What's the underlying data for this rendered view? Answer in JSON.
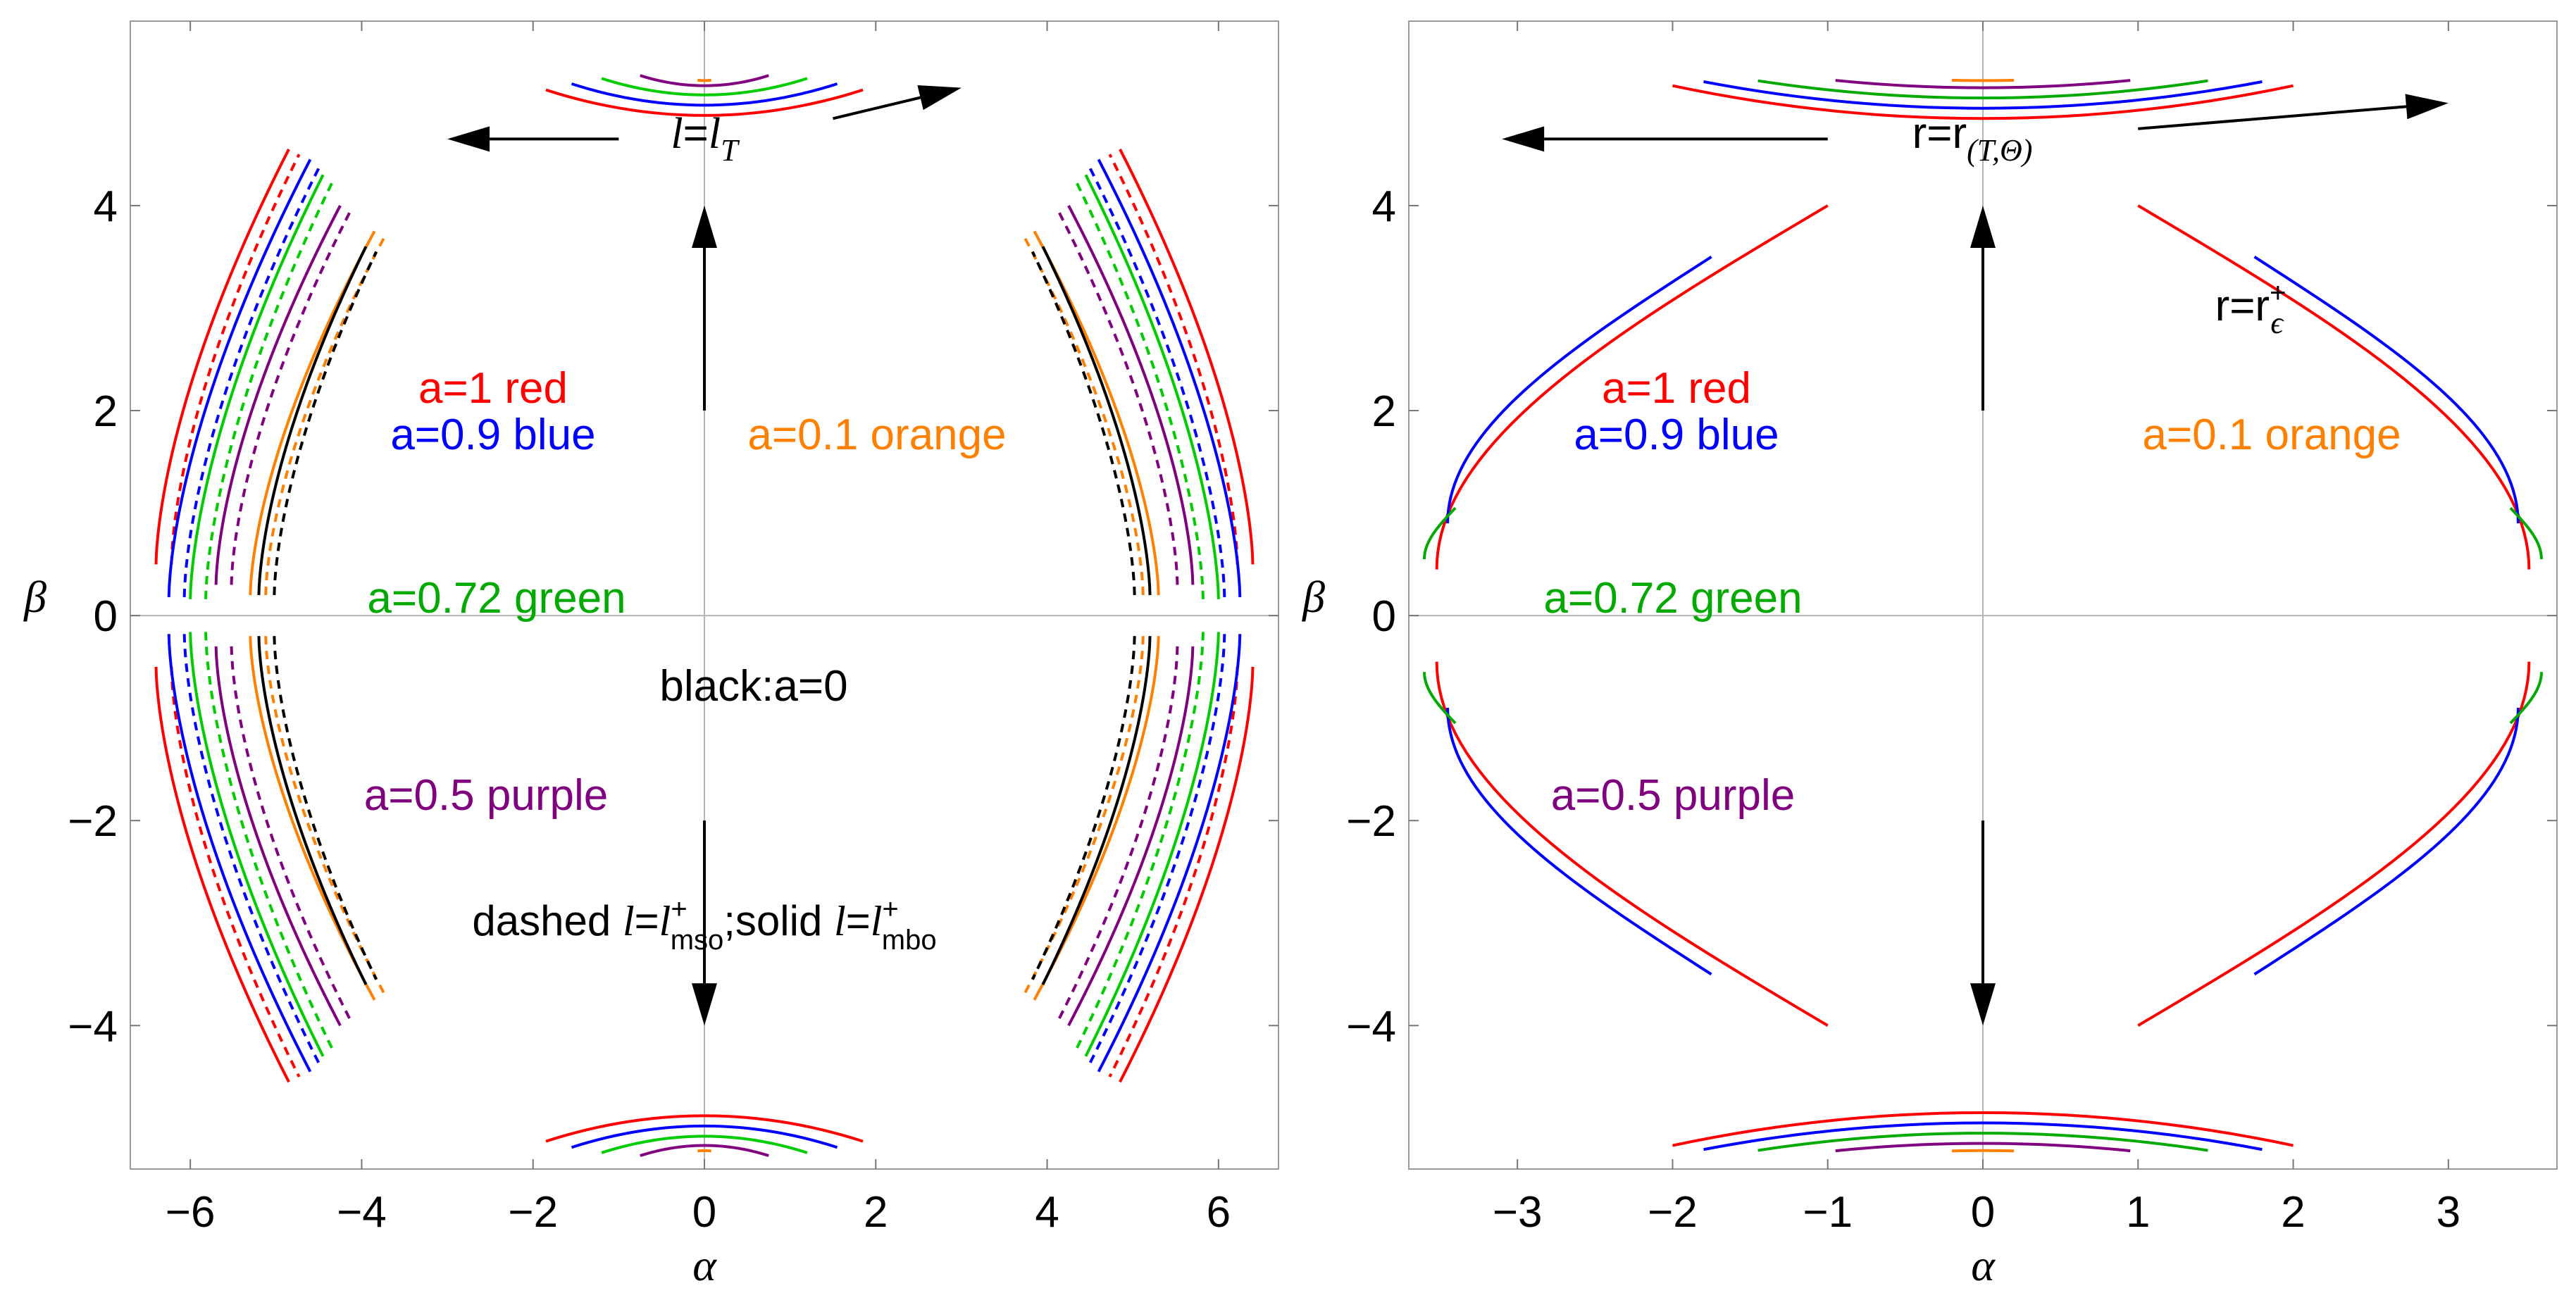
{
  "chart_data": [
    {
      "type": "line",
      "xlabel": "α",
      "ylabel": "β",
      "xlim": [
        -6.7,
        6.7
      ],
      "ylim": [
        -5.4,
        5.8
      ],
      "xticks": [
        -6,
        -4,
        -2,
        0,
        2,
        4,
        6
      ],
      "xtick_labels": [
        "−6",
        "−4",
        "−2",
        "0",
        "2",
        "4",
        "6"
      ],
      "yticks": [
        -4,
        -2,
        0,
        2,
        4
      ],
      "ytick_labels": [
        "−4",
        "−2",
        "0",
        "2",
        "4"
      ],
      "grid": false,
      "labels": [
        {
          "key": "a1",
          "text": "a=1 red",
          "color": "#ff0000"
        },
        {
          "key": "a09",
          "text": "a=0.9 blue",
          "color": "#0000ff"
        },
        {
          "key": "a01",
          "text": "a=0.1 orange",
          "color": "#ff8000"
        },
        {
          "key": "a072",
          "text": "a=0.72 green",
          "color": "#00aa00"
        },
        {
          "key": "a0",
          "text": "black:a=0",
          "color": "#000000"
        },
        {
          "key": "a05",
          "text": "a=0.5 purple",
          "color": "#800080"
        }
      ],
      "bottom_note": {
        "prefix": "dashed ",
        "l": "l",
        "eq1": "=",
        "l_sub1": "mso",
        "sep": ";solid ",
        "eq2": "=",
        "l_sub2": "mbo",
        "sup": "+"
      },
      "top_note": {
        "l": "l",
        "eq": "=",
        "sub": "T"
      },
      "series": [
        {
          "color": "#ff0000",
          "style": "solid",
          "outer_x": 6.4,
          "inner_x": 4.85,
          "beta_max": 4.55,
          "beta_min": 0.5,
          "top_beta": 4.88,
          "top_half": 1.85
        },
        {
          "color": "#0000ff",
          "style": "solid",
          "outer_x": 6.25,
          "inner_x": 4.6,
          "beta_max": 4.45,
          "beta_min": 0.18,
          "top_beta": 4.98,
          "top_half": 1.55
        },
        {
          "color": "#00cc00",
          "style": "solid",
          "outer_x": 6.0,
          "inner_x": 4.45,
          "beta_max": 4.3,
          "beta_min": 0.16,
          "top_beta": 5.08,
          "top_half": 1.2
        },
        {
          "color": "#800080",
          "style": "solid",
          "outer_x": 5.7,
          "inner_x": 4.25,
          "beta_max": 4.0,
          "beta_min": 0.3,
          "top_beta": 5.17,
          "top_half": 0.75
        },
        {
          "color": "#ff8000",
          "style": "solid",
          "outer_x": 5.3,
          "inner_x": 3.85,
          "beta_max": 3.75,
          "beta_min": 0.2,
          "top_beta": 5.22,
          "top_half": 0.08
        },
        {
          "color": "#000000",
          "style": "solid",
          "outer_x": 5.2,
          "inner_x": 3.95,
          "beta_max": 3.6,
          "beta_min": 0.2,
          "top_beta": null,
          "top_half": 0
        }
      ]
    },
    {
      "type": "line",
      "xlabel": "α",
      "ylabel": "β",
      "xlim": [
        -3.7,
        3.7
      ],
      "ylim": [
        -5.4,
        5.8
      ],
      "xticks": [
        -3,
        -2,
        -1,
        0,
        1,
        2,
        3
      ],
      "xtick_labels": [
        "−3",
        "−2",
        "−1",
        "0",
        "1",
        "2",
        "3"
      ],
      "yticks": [
        -4,
        -2,
        0,
        2,
        4
      ],
      "ytick_labels": [
        "−4",
        "−2",
        "0",
        "2",
        "4"
      ],
      "grid": false,
      "labels": [
        {
          "key": "a1",
          "text": "a=1 red",
          "color": "#ff0000"
        },
        {
          "key": "a09",
          "text": "a=0.9 blue",
          "color": "#0000ff"
        },
        {
          "key": "a01",
          "text": "a=0.1 orange",
          "color": "#ff8000"
        },
        {
          "key": "a072",
          "text": "a=0.72 green",
          "color": "#00aa00"
        },
        {
          "key": "a05",
          "text": "a=0.5 purple",
          "color": "#800080"
        }
      ],
      "top_note": {
        "r": "r=r",
        "sub": "(T,Θ)"
      },
      "right_note": {
        "r": "r=r",
        "sub": "ϵ",
        "sup": "+"
      },
      "series": [
        {
          "color": "#ff0000",
          "x_start": 1.0,
          "beta_start": 4.0,
          "x_end": 3.52,
          "beta_end": 0.45,
          "top_beta": 4.85,
          "top_half": 2.0
        },
        {
          "color": "#0000ff",
          "x_start": 1.75,
          "beta_start": 3.5,
          "x_end": 3.45,
          "beta_end": 0.9,
          "top_beta": 4.95,
          "top_half": 1.8
        },
        {
          "color": "#00aa00",
          "x_start": 3.4,
          "beta_start": 1.05,
          "x_end": 3.6,
          "beta_end": 0.55,
          "top_beta": 5.05,
          "top_half": 1.45
        },
        {
          "color": "#800080",
          "x_start": 0,
          "beta_start": 0,
          "x_end": 0,
          "beta_end": 0,
          "top_beta": 5.15,
          "top_half": 0.95
        },
        {
          "color": "#ff8000",
          "x_start": 0,
          "beta_start": 0,
          "x_end": 0,
          "beta_end": 0,
          "top_beta": 5.22,
          "top_half": 0.2
        }
      ]
    }
  ]
}
